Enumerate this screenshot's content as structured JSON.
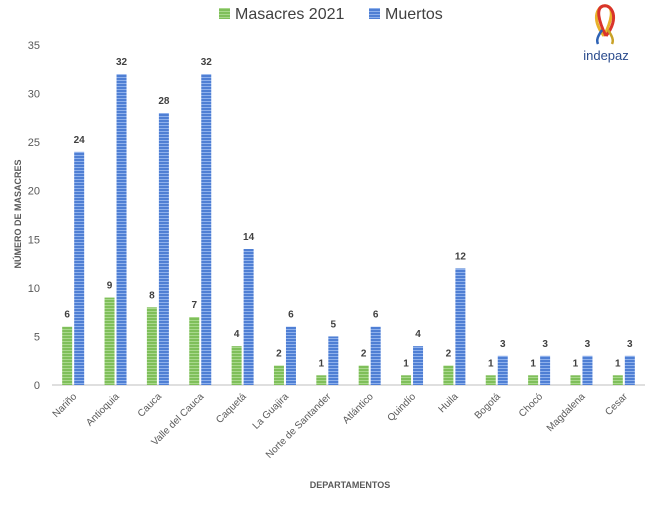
{
  "chart_data": {
    "type": "bar",
    "xlabel": "DEPARTAMENTOS",
    "ylabel": "NÚMERO DE MASACRES",
    "ylim": [
      0,
      35
    ],
    "yticks": [
      0,
      5,
      10,
      15,
      20,
      25,
      30,
      35
    ],
    "grid": false,
    "legend_position": "top",
    "categories": [
      "Nariño",
      "Antioquia",
      "Cauca",
      "Valle del Cauca",
      "Caquetá",
      "La Guajira",
      "Norte de Santander",
      "Atlántico",
      "Quindío",
      "Huila",
      "Bogotá",
      "Chocó",
      "Magdalena",
      "Cesar"
    ],
    "series": [
      {
        "name": "Masacres 2021",
        "color": "#7fbf5a",
        "values": [
          6,
          9,
          8,
          7,
          4,
          2,
          1,
          2,
          1,
          2,
          1,
          1,
          1,
          1
        ]
      },
      {
        "name": "Muertos",
        "color": "#4f7fd4",
        "values": [
          24,
          32,
          28,
          32,
          14,
          6,
          5,
          6,
          4,
          12,
          3,
          3,
          3,
          3
        ]
      }
    ]
  },
  "logo": {
    "text": "indepaz"
  },
  "colors": {
    "text": "#595959",
    "axis": "#bfbfbf"
  }
}
